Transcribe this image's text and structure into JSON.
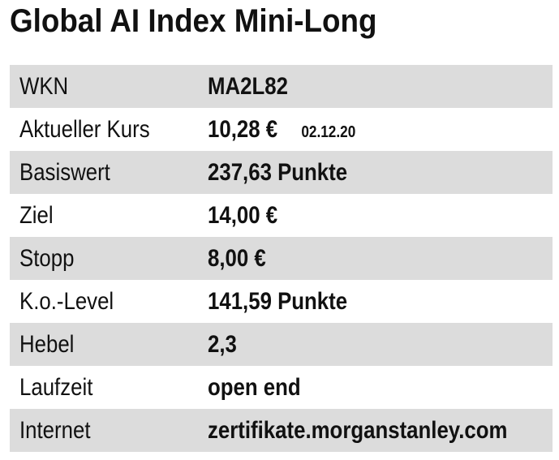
{
  "header": {
    "title": "Global AI Index Mini-Long"
  },
  "table": {
    "rows": [
      {
        "label": "WKN",
        "value": "MA2L82"
      },
      {
        "label": "Aktueller Kurs",
        "value": "10,28 €",
        "date": "02.12.20"
      },
      {
        "label": "Basiswert",
        "value": "237,63 Punkte"
      },
      {
        "label": "Ziel",
        "value": "14,00 €"
      },
      {
        "label": "Stopp",
        "value": "8,00 €"
      },
      {
        "label": "K.o.-Level",
        "value": "141,59 Punkte"
      },
      {
        "label": "Hebel",
        "value": "2,3"
      },
      {
        "label": "Laufzeit",
        "value": "open end"
      },
      {
        "label": "Internet",
        "value": "zertifikate.morganstanley.com"
      }
    ]
  }
}
